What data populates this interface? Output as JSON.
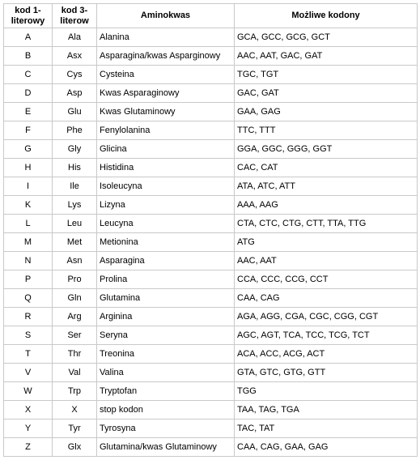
{
  "table": {
    "columns": [
      {
        "label": "kod 1-literowy"
      },
      {
        "label": "kod 3-literow"
      },
      {
        "label": "Aminokwas"
      },
      {
        "label": "Możliwe kodony"
      }
    ],
    "rows": [
      [
        "A",
        "Ala",
        "Alanina",
        "GCA, GCC, GCG, GCT"
      ],
      [
        "B",
        "Asx",
        "Asparagina/kwas Asparginowy",
        "AAC, AAT, GAC, GAT"
      ],
      [
        "C",
        "Cys",
        "Cysteina",
        "TGC, TGT"
      ],
      [
        "D",
        "Asp",
        "Kwas Asparaginowy",
        "GAC, GAT"
      ],
      [
        "E",
        "Glu",
        "Kwas Glutaminowy",
        "GAA, GAG"
      ],
      [
        "F",
        "Phe",
        "Fenylolanina",
        "TTC, TTT"
      ],
      [
        "G",
        "Gly",
        "Glicina",
        "GGA, GGC, GGG, GGT"
      ],
      [
        "H",
        "His",
        "Histidina",
        "CAC, CAT"
      ],
      [
        "I",
        "Ile",
        "Isoleucyna",
        "ATA, ATC, ATT"
      ],
      [
        "K",
        "Lys",
        "Lizyna",
        "AAA, AAG"
      ],
      [
        "L",
        "Leu",
        "Leucyna",
        "CTA, CTC, CTG, CTT, TTA, TTG"
      ],
      [
        "M",
        "Met",
        "Metionina",
        "ATG"
      ],
      [
        "N",
        "Asn",
        "Asparagina",
        "AAC, AAT"
      ],
      [
        "P",
        "Pro",
        "Prolina",
        "CCA, CCC, CCG, CCT"
      ],
      [
        "Q",
        "Gln",
        "Glutamina",
        "CAA, CAG"
      ],
      [
        "R",
        "Arg",
        "Arginina",
        "AGA, AGG, CGA, CGC, CGG, CGT"
      ],
      [
        "S",
        "Ser",
        "Seryna",
        "AGC, AGT, TCA, TCC, TCG, TCT"
      ],
      [
        "T",
        "Thr",
        "Treonina",
        "ACA, ACC, ACG, ACT"
      ],
      [
        "V",
        "Val",
        "Valina",
        "GTA, GTC, GTG, GTT"
      ],
      [
        "W",
        "Trp",
        "Tryptofan",
        "TGG"
      ],
      [
        "X",
        "X",
        "stop kodon",
        "TAA, TAG, TGA"
      ],
      [
        "Y",
        "Tyr",
        "Tyrosyna",
        "TAC, TAT"
      ],
      [
        "Z",
        "Glx",
        "Glutamina/kwas Glutaminowy",
        "CAA, CAG, GAA, GAG"
      ]
    ]
  }
}
